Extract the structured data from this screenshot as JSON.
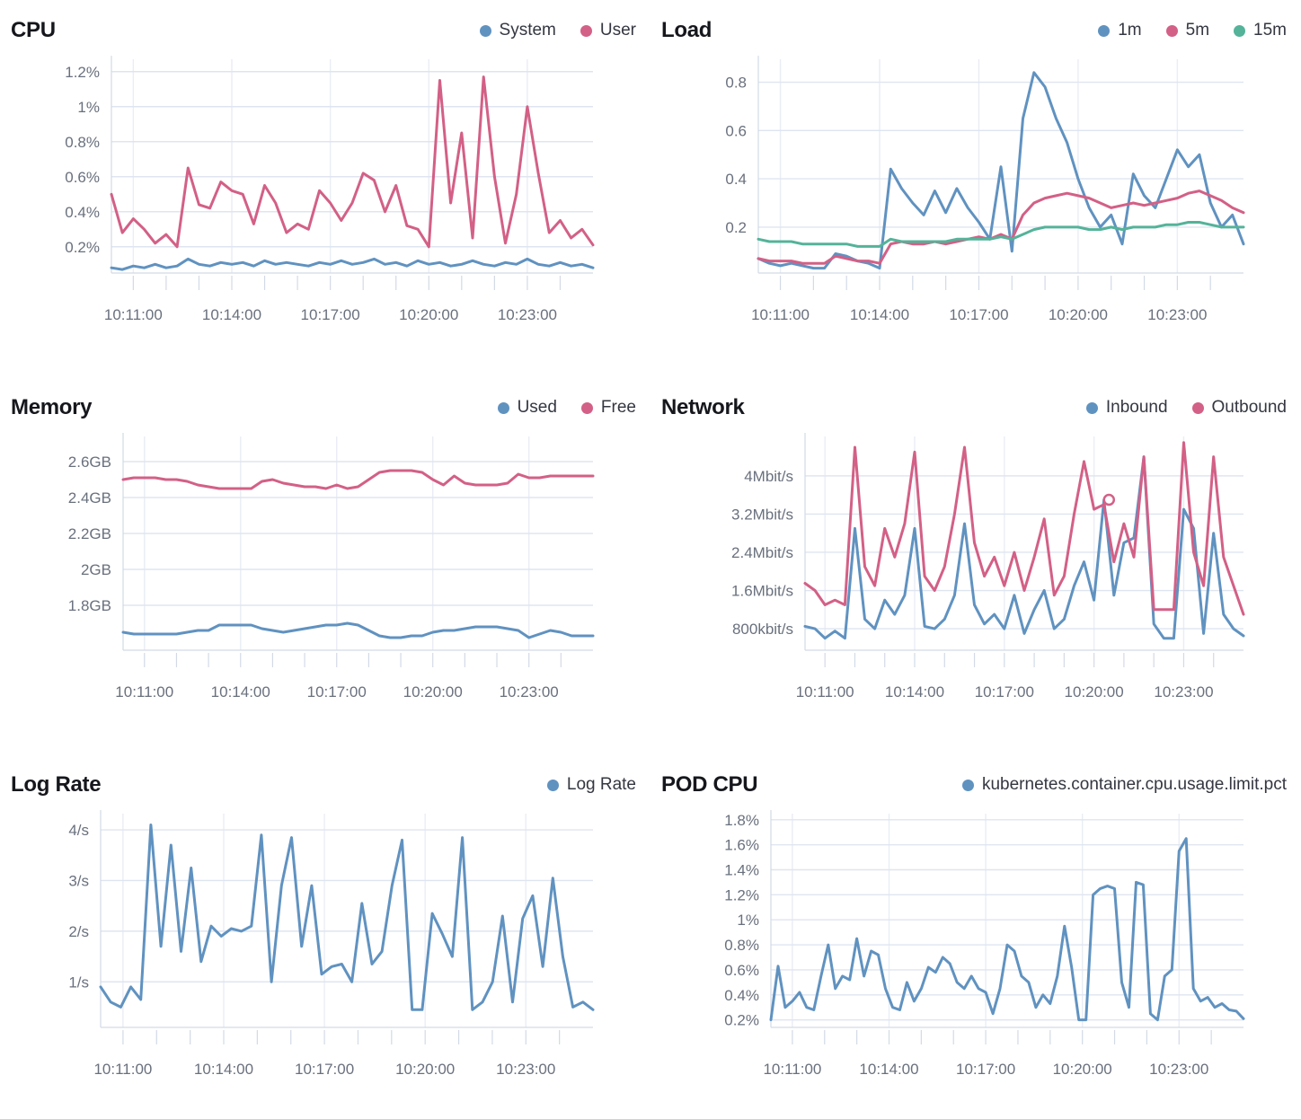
{
  "page": {
    "background": "#ffffff"
  },
  "palette": {
    "blue": "#6092C0",
    "pink": "#D36086",
    "green": "#54B399"
  },
  "chart_data": [
    {
      "id": "cpu",
      "type": "line",
      "title": "CPU",
      "legend_position": "top-right",
      "grid": true,
      "x_domain": [
        "10:10:20",
        "10:25:00"
      ],
      "x_tick_labels": [
        "10:11:00",
        "10:14:00",
        "10:17:00",
        "10:20:00",
        "10:23:00"
      ],
      "y_unit": "%",
      "y_ticks": [
        {
          "label": "0.2%",
          "value": 0.2
        },
        {
          "label": "0.4%",
          "value": 0.4
        },
        {
          "label": "0.6%",
          "value": 0.6
        },
        {
          "label": "0.8%",
          "value": 0.8
        },
        {
          "label": "1%",
          "value": 1.0
        },
        {
          "label": "1.2%",
          "value": 1.2
        }
      ],
      "y_domain": [
        0.05,
        1.25
      ],
      "series": [
        {
          "name": "System",
          "color": "#6092C0",
          "values": [
            0.08,
            0.07,
            0.09,
            0.08,
            0.1,
            0.08,
            0.09,
            0.13,
            0.1,
            0.09,
            0.11,
            0.1,
            0.11,
            0.09,
            0.12,
            0.1,
            0.11,
            0.1,
            0.09,
            0.11,
            0.1,
            0.12,
            0.1,
            0.11,
            0.13,
            0.1,
            0.11,
            0.09,
            0.12,
            0.1,
            0.11,
            0.09,
            0.1,
            0.12,
            0.1,
            0.09,
            0.11,
            0.1,
            0.13,
            0.1,
            0.09,
            0.11,
            0.09,
            0.1,
            0.08
          ]
        },
        {
          "name": "User",
          "color": "#D36086",
          "values": [
            0.5,
            0.28,
            0.36,
            0.3,
            0.22,
            0.27,
            0.2,
            0.65,
            0.44,
            0.42,
            0.57,
            0.52,
            0.5,
            0.33,
            0.55,
            0.45,
            0.28,
            0.33,
            0.3,
            0.52,
            0.45,
            0.35,
            0.45,
            0.62,
            0.58,
            0.4,
            0.55,
            0.32,
            0.3,
            0.2,
            1.15,
            0.45,
            0.85,
            0.25,
            1.17,
            0.6,
            0.22,
            0.5,
            1.0,
            0.62,
            0.28,
            0.35,
            0.25,
            0.3,
            0.21
          ]
        }
      ]
    },
    {
      "id": "load",
      "type": "line",
      "title": "Load",
      "legend_position": "top-right",
      "grid": true,
      "x_domain": [
        "10:10:20",
        "10:25:00"
      ],
      "x_tick_labels": [
        "10:11:00",
        "10:14:00",
        "10:17:00",
        "10:20:00",
        "10:23:00"
      ],
      "y_unit": "",
      "y_ticks": [
        {
          "label": "0.2",
          "value": 0.2
        },
        {
          "label": "0.4",
          "value": 0.4
        },
        {
          "label": "0.6",
          "value": 0.6
        },
        {
          "label": "0.8",
          "value": 0.8
        }
      ],
      "y_domain": [
        0.01,
        0.88
      ],
      "series": [
        {
          "name": "1m",
          "color": "#6092C0",
          "values": [
            0.07,
            0.05,
            0.04,
            0.05,
            0.04,
            0.03,
            0.03,
            0.09,
            0.08,
            0.06,
            0.05,
            0.03,
            0.44,
            0.36,
            0.3,
            0.25,
            0.35,
            0.26,
            0.36,
            0.28,
            0.22,
            0.15,
            0.45,
            0.1,
            0.65,
            0.84,
            0.78,
            0.65,
            0.55,
            0.4,
            0.28,
            0.2,
            0.25,
            0.13,
            0.42,
            0.33,
            0.28,
            0.4,
            0.52,
            0.45,
            0.5,
            0.3,
            0.2,
            0.25,
            0.13
          ]
        },
        {
          "name": "5m",
          "color": "#D36086",
          "values": [
            0.07,
            0.06,
            0.06,
            0.06,
            0.05,
            0.05,
            0.05,
            0.08,
            0.07,
            0.06,
            0.06,
            0.05,
            0.13,
            0.14,
            0.13,
            0.13,
            0.14,
            0.13,
            0.14,
            0.15,
            0.16,
            0.15,
            0.17,
            0.15,
            0.25,
            0.3,
            0.32,
            0.33,
            0.34,
            0.33,
            0.32,
            0.3,
            0.28,
            0.29,
            0.3,
            0.29,
            0.3,
            0.31,
            0.32,
            0.34,
            0.35,
            0.33,
            0.31,
            0.28,
            0.26
          ]
        },
        {
          "name": "15m",
          "color": "#54B399",
          "values": [
            0.15,
            0.14,
            0.14,
            0.14,
            0.13,
            0.13,
            0.13,
            0.13,
            0.13,
            0.12,
            0.12,
            0.12,
            0.15,
            0.14,
            0.14,
            0.14,
            0.14,
            0.14,
            0.15,
            0.15,
            0.15,
            0.15,
            0.16,
            0.15,
            0.17,
            0.19,
            0.2,
            0.2,
            0.2,
            0.2,
            0.19,
            0.19,
            0.2,
            0.19,
            0.2,
            0.2,
            0.2,
            0.21,
            0.21,
            0.22,
            0.22,
            0.21,
            0.2,
            0.2,
            0.2
          ]
        }
      ]
    },
    {
      "id": "memory",
      "type": "line",
      "title": "Memory",
      "legend_position": "top-right",
      "grid": true,
      "x_domain": [
        "10:10:20",
        "10:25:00"
      ],
      "x_tick_labels": [
        "10:11:00",
        "10:14:00",
        "10:17:00",
        "10:20:00",
        "10:23:00"
      ],
      "y_unit": "GB",
      "y_ticks": [
        {
          "label": "1.8GB",
          "value": 1.8
        },
        {
          "label": "2GB",
          "value": 2.0
        },
        {
          "label": "2.2GB",
          "value": 2.2
        },
        {
          "label": "2.4GB",
          "value": 2.4
        },
        {
          "label": "2.6GB",
          "value": 2.6
        }
      ],
      "y_domain": [
        1.55,
        2.72
      ],
      "series": [
        {
          "name": "Used",
          "color": "#6092C0",
          "values": [
            1.65,
            1.64,
            1.64,
            1.64,
            1.64,
            1.64,
            1.65,
            1.66,
            1.66,
            1.69,
            1.69,
            1.69,
            1.69,
            1.67,
            1.66,
            1.65,
            1.66,
            1.67,
            1.68,
            1.69,
            1.69,
            1.7,
            1.69,
            1.66,
            1.63,
            1.62,
            1.62,
            1.63,
            1.63,
            1.65,
            1.66,
            1.66,
            1.67,
            1.68,
            1.68,
            1.68,
            1.67,
            1.66,
            1.62,
            1.64,
            1.66,
            1.65,
            1.63,
            1.63,
            1.63
          ]
        },
        {
          "name": "Free",
          "color": "#D36086",
          "values": [
            2.5,
            2.51,
            2.51,
            2.51,
            2.5,
            2.5,
            2.49,
            2.47,
            2.46,
            2.45,
            2.45,
            2.45,
            2.45,
            2.49,
            2.5,
            2.48,
            2.47,
            2.46,
            2.46,
            2.45,
            2.47,
            2.45,
            2.46,
            2.5,
            2.54,
            2.55,
            2.55,
            2.55,
            2.54,
            2.5,
            2.47,
            2.52,
            2.48,
            2.47,
            2.47,
            2.47,
            2.48,
            2.53,
            2.51,
            2.51,
            2.52,
            2.52,
            2.52,
            2.52,
            2.52
          ]
        }
      ]
    },
    {
      "id": "network",
      "type": "line",
      "title": "Network",
      "legend_position": "top-right",
      "grid": true,
      "x_domain": [
        "10:10:20",
        "10:25:00"
      ],
      "x_tick_labels": [
        "10:11:00",
        "10:14:00",
        "10:17:00",
        "10:20:00",
        "10:23:00"
      ],
      "y_unit": "Mbit/s",
      "y_ticks": [
        {
          "label": "800kbit/s",
          "value": 0.8
        },
        {
          "label": "1.6Mbit/s",
          "value": 1.6
        },
        {
          "label": "2.4Mbit/s",
          "value": 2.4
        },
        {
          "label": "3.2Mbit/s",
          "value": 3.2
        },
        {
          "label": "4Mbit/s",
          "value": 4.0
        }
      ],
      "y_domain": [
        0.35,
        4.75
      ],
      "marker": {
        "series": "Outbound",
        "time": "10:20:30",
        "value": 3.5
      },
      "series": [
        {
          "name": "Inbound",
          "color": "#6092C0",
          "values": [
            0.85,
            0.8,
            0.6,
            0.75,
            0.6,
            2.9,
            1.0,
            0.8,
            1.4,
            1.1,
            1.5,
            2.9,
            0.85,
            0.8,
            1.0,
            1.5,
            3.0,
            1.3,
            0.9,
            1.1,
            0.8,
            1.5,
            0.7,
            1.2,
            1.6,
            0.8,
            1.0,
            1.7,
            2.2,
            1.4,
            3.5,
            1.5,
            2.6,
            2.7,
            4.4,
            0.9,
            0.6,
            0.6,
            3.3,
            2.9,
            0.7,
            2.8,
            1.1,
            0.8,
            0.65
          ]
        },
        {
          "name": "Outbound",
          "color": "#D36086",
          "values": [
            1.75,
            1.6,
            1.3,
            1.4,
            1.3,
            4.6,
            2.1,
            1.7,
            2.9,
            2.3,
            3.0,
            4.5,
            1.9,
            1.6,
            2.1,
            3.2,
            4.6,
            2.6,
            1.9,
            2.3,
            1.7,
            2.4,
            1.6,
            2.3,
            3.1,
            1.5,
            1.9,
            3.2,
            4.3,
            3.3,
            3.4,
            2.2,
            3.0,
            2.3,
            4.4,
            1.2,
            1.2,
            1.2,
            4.7,
            2.4,
            1.7,
            4.4,
            2.3,
            1.7,
            1.1
          ]
        }
      ]
    },
    {
      "id": "lograte",
      "type": "line",
      "title": "Log Rate",
      "legend_position": "top-right",
      "grid": true,
      "x_domain": [
        "10:10:20",
        "10:25:00"
      ],
      "x_tick_labels": [
        "10:11:00",
        "10:14:00",
        "10:17:00",
        "10:20:00",
        "10:23:00"
      ],
      "y_unit": "/s",
      "y_ticks": [
        {
          "label": "1/s",
          "value": 1.0
        },
        {
          "label": "2/s",
          "value": 2.0
        },
        {
          "label": "3/s",
          "value": 3.0
        },
        {
          "label": "4/s",
          "value": 4.0
        }
      ],
      "y_domain": [
        0.1,
        4.25
      ],
      "series": [
        {
          "name": "Log Rate",
          "color": "#6092C0",
          "values": [
            0.9,
            0.6,
            0.5,
            0.9,
            0.65,
            4.1,
            1.7,
            3.7,
            1.6,
            3.25,
            1.4,
            2.1,
            1.9,
            2.05,
            2.0,
            2.1,
            3.9,
            1.0,
            2.9,
            3.85,
            1.7,
            2.9,
            1.15,
            1.3,
            1.35,
            1.0,
            2.55,
            1.35,
            1.6,
            2.9,
            3.8,
            0.45,
            0.45,
            2.35,
            1.95,
            1.5,
            3.85,
            0.45,
            0.6,
            1.0,
            2.3,
            0.6,
            2.25,
            2.7,
            1.3,
            3.05,
            1.5,
            0.5,
            0.6,
            0.45
          ]
        }
      ]
    },
    {
      "id": "podcpu",
      "type": "line",
      "title": "POD CPU",
      "legend_position": "top-right",
      "grid": true,
      "x_domain": [
        "10:10:20",
        "10:25:00"
      ],
      "x_tick_labels": [
        "10:11:00",
        "10:14:00",
        "10:17:00",
        "10:20:00",
        "10:23:00"
      ],
      "y_unit": "%",
      "y_ticks": [
        {
          "label": "0.2%",
          "value": 0.2
        },
        {
          "label": "0.4%",
          "value": 0.4
        },
        {
          "label": "0.6%",
          "value": 0.6
        },
        {
          "label": "0.8%",
          "value": 0.8
        },
        {
          "label": "1%",
          "value": 1.0
        },
        {
          "label": "1.2%",
          "value": 1.2
        },
        {
          "label": "1.4%",
          "value": 1.4
        },
        {
          "label": "1.6%",
          "value": 1.6
        },
        {
          "label": "1.8%",
          "value": 1.8
        }
      ],
      "y_domain": [
        0.14,
        1.82
      ],
      "series": [
        {
          "name": "kubernetes.container.cpu.usage.limit.pct",
          "color": "#6092C0",
          "values": [
            0.2,
            0.63,
            0.3,
            0.35,
            0.42,
            0.3,
            0.28,
            0.55,
            0.8,
            0.45,
            0.55,
            0.52,
            0.85,
            0.55,
            0.75,
            0.72,
            0.45,
            0.3,
            0.28,
            0.5,
            0.35,
            0.45,
            0.62,
            0.58,
            0.7,
            0.65,
            0.5,
            0.45,
            0.55,
            0.45,
            0.42,
            0.25,
            0.45,
            0.8,
            0.75,
            0.55,
            0.5,
            0.3,
            0.4,
            0.33,
            0.55,
            0.95,
            0.62,
            0.2,
            0.2,
            1.2,
            1.25,
            1.27,
            1.25,
            0.5,
            0.3,
            1.3,
            1.28,
            0.25,
            0.2,
            0.55,
            0.6,
            1.55,
            1.65,
            0.45,
            0.35,
            0.38,
            0.3,
            0.33,
            0.28,
            0.27,
            0.21
          ]
        }
      ]
    }
  ]
}
